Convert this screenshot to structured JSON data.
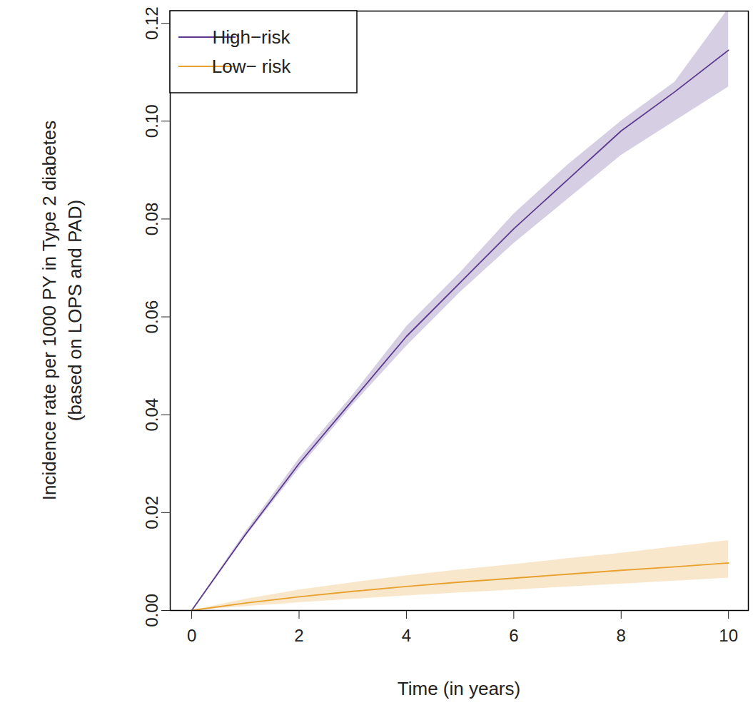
{
  "chart_data": {
    "type": "line",
    "x_label": "Time (in years)",
    "y_label": [
      "Incidence rate per 1000 PY in Type 2 diabetes",
      "(based on LOPS and PAD)"
    ],
    "x": [
      0,
      1,
      2,
      3,
      4,
      5,
      6,
      7,
      8,
      9,
      10
    ],
    "series": [
      {
        "name": "High−risk",
        "color": "#5b3a8e",
        "values": [
          0,
          0.0155,
          0.03,
          0.043,
          0.056,
          0.067,
          0.078,
          0.088,
          0.098,
          0.106,
          0.1145
        ],
        "lower": [
          0,
          0.015,
          0.029,
          0.042,
          0.054,
          0.065,
          0.075,
          0.084,
          0.093,
          0.1,
          0.107
        ],
        "upper": [
          0,
          0.016,
          0.031,
          0.044,
          0.058,
          0.069,
          0.081,
          0.091,
          0.1,
          0.108,
          0.123
        ]
      },
      {
        "name": "Low− risk",
        "color": "#e8a02e",
        "values": [
          0,
          0.0015,
          0.0028,
          0.0039,
          0.0049,
          0.0058,
          0.0066,
          0.0074,
          0.0082,
          0.0089,
          0.0097
        ],
        "lower": [
          0,
          0.0008,
          0.0016,
          0.0023,
          0.003,
          0.0036,
          0.0042,
          0.0048,
          0.0054,
          0.006,
          0.0066
        ],
        "upper": [
          0,
          0.0023,
          0.0042,
          0.0057,
          0.0071,
          0.0083,
          0.0094,
          0.0106,
          0.0117,
          0.013,
          0.0143
        ]
      }
    ],
    "xlim": [
      -0.4,
      10.37
    ],
    "ylim": [
      0,
      0.1225
    ],
    "xticks": [
      0,
      2,
      4,
      6,
      8,
      10
    ],
    "yticks": [
      {
        "value": 0,
        "label": "0.00"
      },
      {
        "value": 0.02,
        "label": "0.02"
      },
      {
        "value": 0.04,
        "label": "0.04"
      },
      {
        "value": 0.06,
        "label": "0.06"
      },
      {
        "value": 0.08,
        "label": "0.08"
      },
      {
        "value": 0.1,
        "label": "0.10"
      },
      {
        "value": 0.12,
        "label": "0.12"
      }
    ],
    "legend": "top-left",
    "grid": false
  }
}
